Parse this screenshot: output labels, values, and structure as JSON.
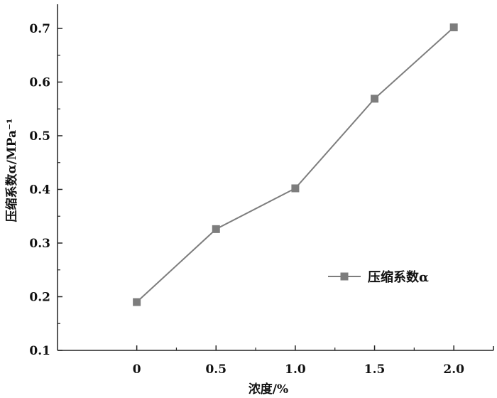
{
  "chart_data": {
    "type": "line",
    "x": [
      0,
      0.5,
      1.0,
      1.5,
      2.0
    ],
    "series": [
      {
        "name": "压缩系数α",
        "values": [
          0.19,
          0.326,
          0.402,
          0.569,
          0.702
        ]
      }
    ],
    "xlabel": "浓度/%",
    "ylabel": "压缩系数α/MPa⁻¹",
    "xticks": [
      "0",
      "0.5",
      "1.0",
      "1.5",
      "2.0"
    ],
    "yticks": [
      "0.1",
      "0.2",
      "0.3",
      "0.4",
      "0.5",
      "0.6",
      "0.7"
    ],
    "xlim": [
      -0.5,
      2.25
    ],
    "ylim": [
      0.1,
      0.745
    ],
    "grid": false,
    "legend_position": "right",
    "colors": {
      "line": "#7d7d7d",
      "marker": "#7d7d7d",
      "axis": "#222222"
    }
  }
}
